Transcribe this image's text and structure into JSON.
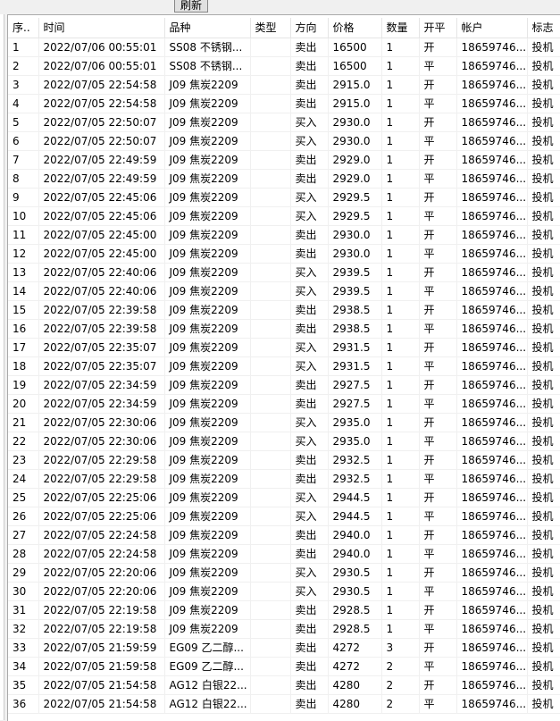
{
  "toolbar": {
    "refresh_label": "刷新"
  },
  "columns": [
    "序..",
    "时间",
    "品种",
    "类型",
    "方向",
    "价格",
    "数量",
    "开平",
    "帐户",
    "标志"
  ],
  "rows": [
    [
      "1",
      "2022/07/06 00:55:01",
      "SS08 不锈钢...",
      "",
      "卖出",
      "16500",
      "1",
      "开",
      "18659746...",
      "投机"
    ],
    [
      "2",
      "2022/07/06 00:55:01",
      "SS08 不锈钢...",
      "",
      "卖出",
      "16500",
      "1",
      "平",
      "18659746...",
      "投机"
    ],
    [
      "3",
      "2022/07/05 22:54:58",
      "J09 焦炭2209",
      "",
      "卖出",
      "2915.0",
      "1",
      "开",
      "18659746...",
      "投机"
    ],
    [
      "4",
      "2022/07/05 22:54:58",
      "J09 焦炭2209",
      "",
      "卖出",
      "2915.0",
      "1",
      "平",
      "18659746...",
      "投机"
    ],
    [
      "5",
      "2022/07/05 22:50:07",
      "J09 焦炭2209",
      "",
      "买入",
      "2930.0",
      "1",
      "开",
      "18659746...",
      "投机"
    ],
    [
      "6",
      "2022/07/05 22:50:07",
      "J09 焦炭2209",
      "",
      "买入",
      "2930.0",
      "1",
      "平",
      "18659746...",
      "投机"
    ],
    [
      "7",
      "2022/07/05 22:49:59",
      "J09 焦炭2209",
      "",
      "卖出",
      "2929.0",
      "1",
      "开",
      "18659746...",
      "投机"
    ],
    [
      "8",
      "2022/07/05 22:49:59",
      "J09 焦炭2209",
      "",
      "卖出",
      "2929.0",
      "1",
      "平",
      "18659746...",
      "投机"
    ],
    [
      "9",
      "2022/07/05 22:45:06",
      "J09 焦炭2209",
      "",
      "买入",
      "2929.5",
      "1",
      "开",
      "18659746...",
      "投机"
    ],
    [
      "10",
      "2022/07/05 22:45:06",
      "J09 焦炭2209",
      "",
      "买入",
      "2929.5",
      "1",
      "平",
      "18659746...",
      "投机"
    ],
    [
      "11",
      "2022/07/05 22:45:00",
      "J09 焦炭2209",
      "",
      "卖出",
      "2930.0",
      "1",
      "开",
      "18659746...",
      "投机"
    ],
    [
      "12",
      "2022/07/05 22:45:00",
      "J09 焦炭2209",
      "",
      "卖出",
      "2930.0",
      "1",
      "平",
      "18659746...",
      "投机"
    ],
    [
      "13",
      "2022/07/05 22:40:06",
      "J09 焦炭2209",
      "",
      "买入",
      "2939.5",
      "1",
      "开",
      "18659746...",
      "投机"
    ],
    [
      "14",
      "2022/07/05 22:40:06",
      "J09 焦炭2209",
      "",
      "买入",
      "2939.5",
      "1",
      "平",
      "18659746...",
      "投机"
    ],
    [
      "15",
      "2022/07/05 22:39:58",
      "J09 焦炭2209",
      "",
      "卖出",
      "2938.5",
      "1",
      "开",
      "18659746...",
      "投机"
    ],
    [
      "16",
      "2022/07/05 22:39:58",
      "J09 焦炭2209",
      "",
      "卖出",
      "2938.5",
      "1",
      "平",
      "18659746...",
      "投机"
    ],
    [
      "17",
      "2022/07/05 22:35:07",
      "J09 焦炭2209",
      "",
      "买入",
      "2931.5",
      "1",
      "开",
      "18659746...",
      "投机"
    ],
    [
      "18",
      "2022/07/05 22:35:07",
      "J09 焦炭2209",
      "",
      "买入",
      "2931.5",
      "1",
      "平",
      "18659746...",
      "投机"
    ],
    [
      "19",
      "2022/07/05 22:34:59",
      "J09 焦炭2209",
      "",
      "卖出",
      "2927.5",
      "1",
      "开",
      "18659746...",
      "投机"
    ],
    [
      "20",
      "2022/07/05 22:34:59",
      "J09 焦炭2209",
      "",
      "卖出",
      "2927.5",
      "1",
      "平",
      "18659746...",
      "投机"
    ],
    [
      "21",
      "2022/07/05 22:30:06",
      "J09 焦炭2209",
      "",
      "买入",
      "2935.0",
      "1",
      "开",
      "18659746...",
      "投机"
    ],
    [
      "22",
      "2022/07/05 22:30:06",
      "J09 焦炭2209",
      "",
      "买入",
      "2935.0",
      "1",
      "平",
      "18659746...",
      "投机"
    ],
    [
      "23",
      "2022/07/05 22:29:58",
      "J09 焦炭2209",
      "",
      "卖出",
      "2932.5",
      "1",
      "开",
      "18659746...",
      "投机"
    ],
    [
      "24",
      "2022/07/05 22:29:58",
      "J09 焦炭2209",
      "",
      "卖出",
      "2932.5",
      "1",
      "平",
      "18659746...",
      "投机"
    ],
    [
      "25",
      "2022/07/05 22:25:06",
      "J09 焦炭2209",
      "",
      "买入",
      "2944.5",
      "1",
      "开",
      "18659746...",
      "投机"
    ],
    [
      "26",
      "2022/07/05 22:25:06",
      "J09 焦炭2209",
      "",
      "买入",
      "2944.5",
      "1",
      "平",
      "18659746...",
      "投机"
    ],
    [
      "27",
      "2022/07/05 22:24:58",
      "J09 焦炭2209",
      "",
      "卖出",
      "2940.0",
      "1",
      "开",
      "18659746...",
      "投机"
    ],
    [
      "28",
      "2022/07/05 22:24:58",
      "J09 焦炭2209",
      "",
      "卖出",
      "2940.0",
      "1",
      "平",
      "18659746...",
      "投机"
    ],
    [
      "29",
      "2022/07/05 22:20:06",
      "J09 焦炭2209",
      "",
      "买入",
      "2930.5",
      "1",
      "开",
      "18659746...",
      "投机"
    ],
    [
      "30",
      "2022/07/05 22:20:06",
      "J09 焦炭2209",
      "",
      "买入",
      "2930.5",
      "1",
      "平",
      "18659746...",
      "投机"
    ],
    [
      "31",
      "2022/07/05 22:19:58",
      "J09 焦炭2209",
      "",
      "卖出",
      "2928.5",
      "1",
      "开",
      "18659746...",
      "投机"
    ],
    [
      "32",
      "2022/07/05 22:19:58",
      "J09 焦炭2209",
      "",
      "卖出",
      "2928.5",
      "1",
      "平",
      "18659746...",
      "投机"
    ],
    [
      "33",
      "2022/07/05 21:59:59",
      "EG09 乙二醇...",
      "",
      "卖出",
      "4272",
      "3",
      "开",
      "18659746...",
      "投机"
    ],
    [
      "34",
      "2022/07/05 21:59:58",
      "EG09 乙二醇...",
      "",
      "卖出",
      "4272",
      "2",
      "平",
      "18659746...",
      "投机"
    ],
    [
      "35",
      "2022/07/05 21:54:58",
      "AG12 白银22...",
      "",
      "卖出",
      "4280",
      "2",
      "开",
      "18659746...",
      "投机"
    ],
    [
      "36",
      "2022/07/05 21:54:58",
      "AG12 白银22...",
      "",
      "卖出",
      "4280",
      "2",
      "平",
      "18659746...",
      "投机"
    ]
  ]
}
